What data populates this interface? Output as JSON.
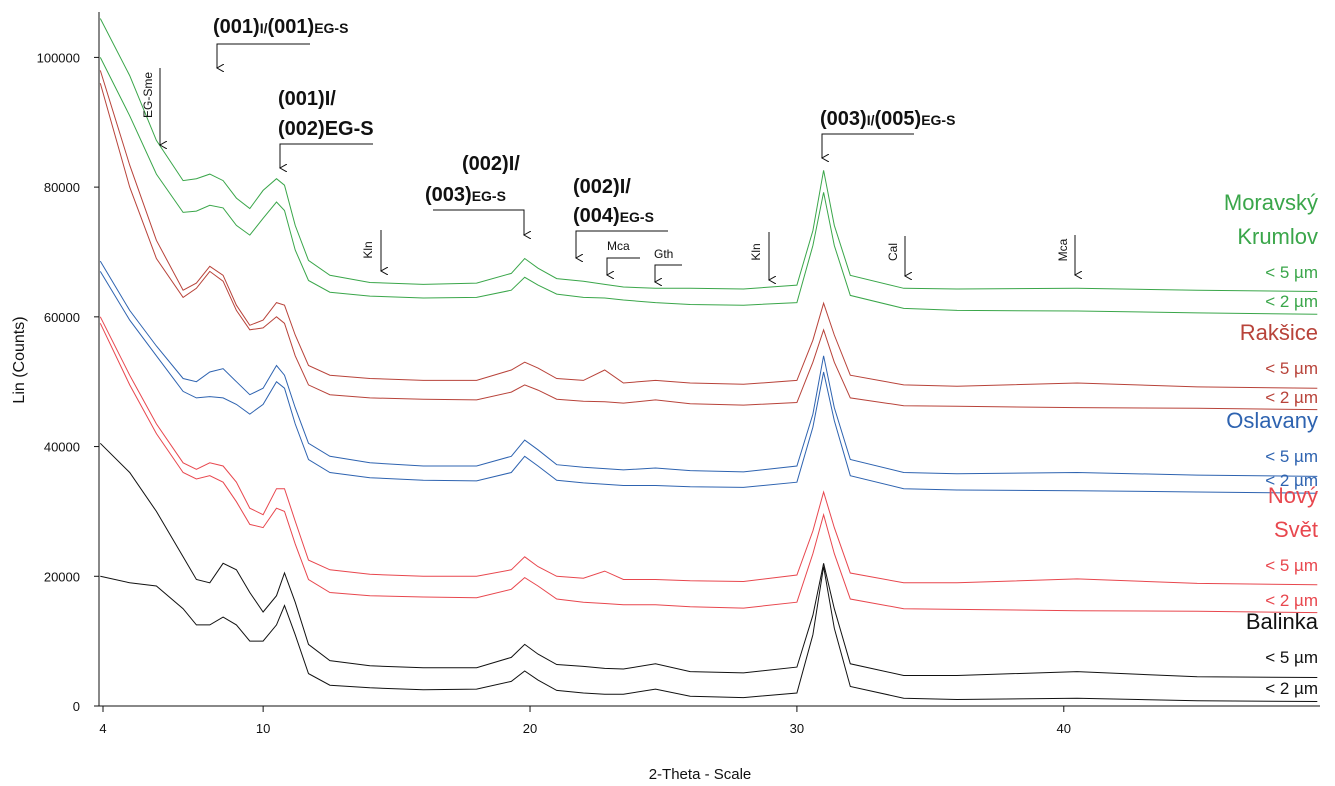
{
  "chart_data": {
    "type": "line",
    "x_label": "2-Theta - Scale",
    "y_label": "Lin (Counts)",
    "xlim": [
      3.85,
      49.6
    ],
    "xticks": [
      4,
      10,
      20,
      30,
      40
    ],
    "ylim": [
      0,
      107000
    ],
    "yticks": [
      0,
      20000,
      40000,
      60000,
      80000,
      100000
    ],
    "x": [
      3.9,
      5,
      6,
      7,
      7.5,
      8,
      8.5,
      9,
      9.5,
      10,
      10.5,
      10.8,
      11.2,
      11.7,
      12.5,
      14,
      16,
      18,
      19.3,
      19.8,
      20.3,
      21,
      22,
      22.8,
      23.5,
      24.7,
      26,
      28,
      30,
      30.6,
      31,
      31.4,
      32,
      34,
      36,
      40.5,
      45,
      49.5
    ],
    "groups": [
      {
        "name": "Moravský Krumlov",
        "color": "#3aa64a",
        "series": [
          {
            "name": "< 5 µm",
            "values": [
              106000,
              97200,
              87200,
              81000,
              81300,
              82000,
              81000,
              78300,
              76700,
              79500,
              81300,
              80300,
              74100,
              68700,
              66400,
              65300,
              65000,
              65200,
              66700,
              69000,
              67500,
              65900,
              65500,
              65000,
              64600,
              64400,
              64400,
              64300,
              64900,
              73300,
              82600,
              74100,
              66400,
              64400,
              64300,
              64400,
              64100,
              63900
            ]
          },
          {
            "name": "< 2 µm",
            "values": [
              100000,
              91000,
              82000,
              76100,
              76300,
              77200,
              76800,
              74100,
              72600,
              75200,
              77700,
              76400,
              70300,
              65600,
              63800,
              63200,
              62900,
              63000,
              64100,
              66100,
              64900,
              63500,
              63000,
              62900,
              62600,
              62200,
              61900,
              61800,
              62200,
              71000,
              79200,
              71000,
              63300,
              61300,
              61000,
              60900,
              60600,
              60400
            ]
          }
        ]
      },
      {
        "name": "Rakšice",
        "color": "#b8433a",
        "series": [
          {
            "name": "< 5 µm",
            "values": [
              98000,
              83400,
              71800,
              64100,
              65200,
              67800,
              66400,
              61800,
              58700,
              59500,
              62200,
              61800,
              57200,
              52500,
              51000,
              50500,
              50200,
              50200,
              51800,
              53000,
              52100,
              50500,
              50200,
              51800,
              49800,
              50200,
              49800,
              49600,
              50200,
              56400,
              62100,
              57200,
              51000,
              49500,
              49300,
              49800,
              49200,
              49000
            ]
          },
          {
            "name": "< 2 µm",
            "values": [
              96000,
              80000,
              69000,
              63000,
              64400,
              67000,
              65500,
              61000,
              58000,
              58300,
              60000,
              59000,
              54000,
              49500,
              48000,
              47500,
              47300,
              47200,
              48400,
              49500,
              48700,
              47300,
              47000,
              46900,
              46700,
              47200,
              46600,
              46400,
              46800,
              53000,
              58000,
              53000,
              47500,
              46300,
              46200,
              46000,
              45900,
              45700
            ]
          }
        ]
      },
      {
        "name": "Oslavany",
        "color": "#2e63b0",
        "series": [
          {
            "name": "< 5 µm",
            "values": [
              68600,
              61000,
              55500,
              50500,
              50000,
              51500,
              52000,
              50000,
              48000,
              49000,
              52500,
              51000,
              46000,
              40500,
              38500,
              37500,
              37000,
              37000,
              38500,
              41000,
              39500,
              37200,
              36800,
              36600,
              36400,
              36700,
              36300,
              36100,
              37000,
              45000,
              54000,
              46000,
              38000,
              36000,
              35800,
              36000,
              35600,
              35400
            ]
          },
          {
            "name": "< 2 µm",
            "values": [
              67000,
              59500,
              54000,
              48500,
              47500,
              47700,
              47500,
              46500,
              45000,
              46500,
              50000,
              49000,
              43500,
              38000,
              36000,
              35200,
              34800,
              34700,
              36000,
              38500,
              37000,
              34800,
              34400,
              34200,
              34000,
              34000,
              33800,
              33700,
              34500,
              43000,
              51500,
              44000,
              35500,
              33500,
              33300,
              33200,
              33000,
              32800
            ]
          }
        ]
      },
      {
        "name": "Nový Svět",
        "color": "#e8474e",
        "series": [
          {
            "name": "< 5 µm",
            "values": [
              60000,
              51000,
              43500,
              37500,
              36500,
              37500,
              37000,
              34500,
              30500,
              29500,
              33500,
              33500,
              28500,
              22500,
              21000,
              20300,
              20000,
              20000,
              21000,
              23000,
              21500,
              20000,
              19700,
              20800,
              19500,
              19500,
              19300,
              19200,
              20200,
              27000,
              33000,
              27500,
              20500,
              19000,
              19000,
              19600,
              18900,
              18700
            ]
          },
          {
            "name": "< 2 µm",
            "values": [
              59000,
              49500,
              42000,
              36000,
              35000,
              35500,
              34500,
              31500,
              28000,
              27500,
              30500,
              30000,
              25000,
              19500,
              17500,
              17000,
              16800,
              16700,
              18000,
              19800,
              18500,
              16500,
              16000,
              15800,
              15600,
              15600,
              15300,
              15100,
              16000,
              23500,
              29500,
              23500,
              16500,
              15000,
              14900,
              14700,
              14600,
              14400
            ]
          }
        ]
      },
      {
        "name": "Balinka",
        "color": "#111111",
        "series": [
          {
            "name": "< 5 µm",
            "values": [
              40500,
              36000,
              30000,
              23000,
              19500,
              19000,
              22000,
              21000,
              17500,
              14500,
              17000,
              20500,
              16000,
              9500,
              7000,
              6200,
              5900,
              5900,
              7500,
              9500,
              8000,
              6400,
              6100,
              5800,
              5700,
              6500,
              5300,
              5100,
              6000,
              14000,
              22000,
              15000,
              6500,
              4700,
              4700,
              5300,
              4500,
              4400
            ]
          },
          {
            "name": "< 2 µm",
            "values": [
              20000,
              19000,
              18500,
              15000,
              12500,
              12500,
              13700,
              12500,
              10000,
              10000,
              12500,
              15500,
              11000,
              5000,
              3200,
              2800,
              2500,
              2600,
              3800,
              5400,
              4000,
              2400,
              2000,
              1800,
              1800,
              2600,
              1500,
              1300,
              2000,
              11000,
              21500,
              12000,
              3000,
              1200,
              1000,
              1200,
              800,
              700
            ]
          }
        ]
      }
    ],
    "annotations": [
      {
        "lines": [
          [
            "(001)",
            "I/",
            "(001)",
            "EG-S"
          ]
        ]
      },
      {
        "lines": [
          [
            "(001)I/"
          ],
          [
            "(002)EG-S"
          ]
        ]
      },
      {
        "lines": [
          [
            "(002)I/"
          ],
          [
            "(003)",
            "EG-S"
          ]
        ]
      },
      {
        "lines": [
          [
            "(002)I/"
          ],
          [
            "(004)",
            "EG-S"
          ]
        ]
      },
      {
        "lines": [
          [
            "(003)",
            "I/",
            "(005)",
            "EG-S"
          ]
        ]
      }
    ],
    "markers": [
      "EG-Sme",
      "Kln",
      "Mca",
      "Gth",
      "Kln",
      "Cal",
      "Mca"
    ]
  }
}
